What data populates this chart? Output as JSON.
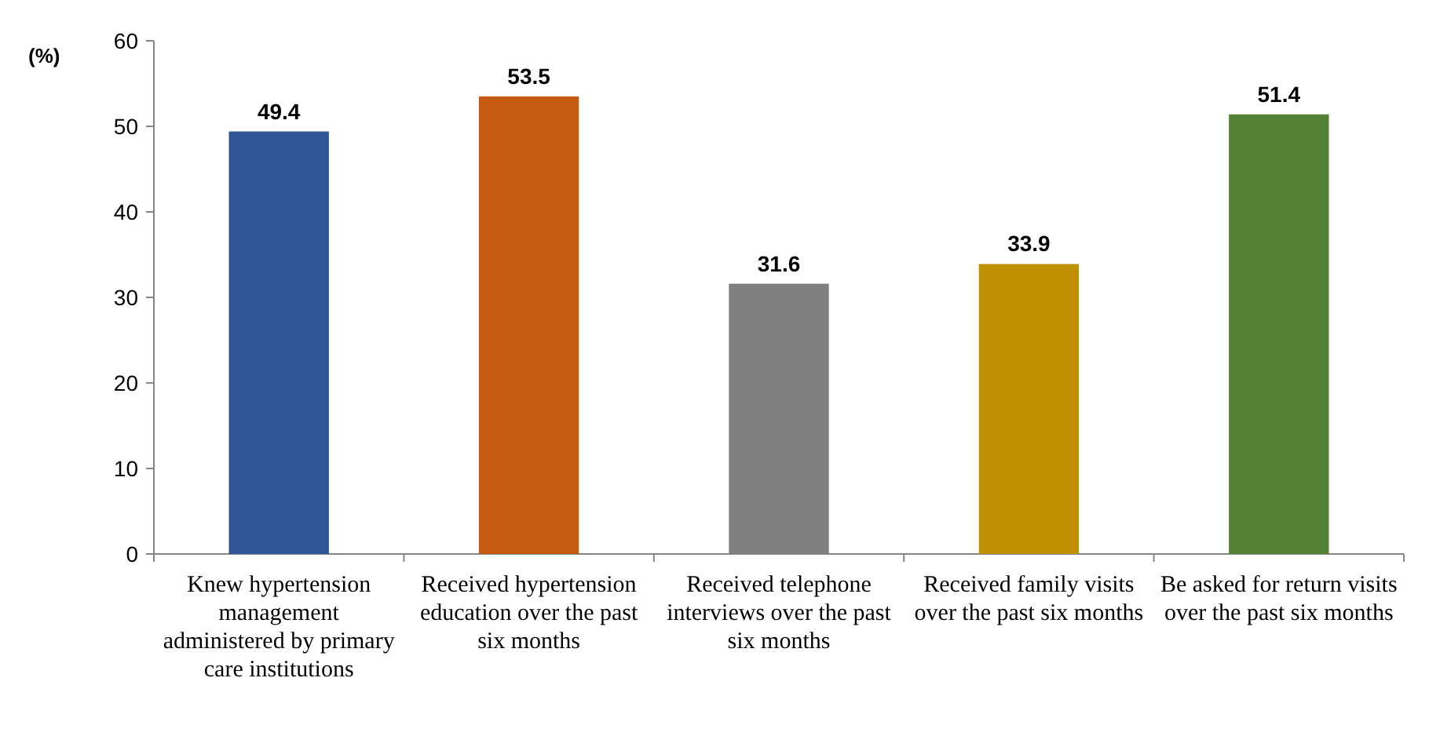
{
  "chart_data": {
    "type": "bar",
    "ylabel": "(%)",
    "categories": [
      "Knew hypertension management administered by primary care institutions",
      "Received hypertension education over the past six months",
      "Received telephone interviews over the past six months",
      "Received family visits over the past six months",
      "Be asked for return visits over the past six months"
    ],
    "values": [
      49.4,
      53.5,
      31.6,
      33.9,
      51.4
    ],
    "colors": [
      "#2f5597",
      "#c55a11",
      "#7f7f7f",
      "#bf9000",
      "#548235"
    ],
    "ylim": [
      0,
      60
    ],
    "yticks": [
      0,
      10,
      20,
      30,
      40,
      50,
      60
    ],
    "data_labels": true
  }
}
